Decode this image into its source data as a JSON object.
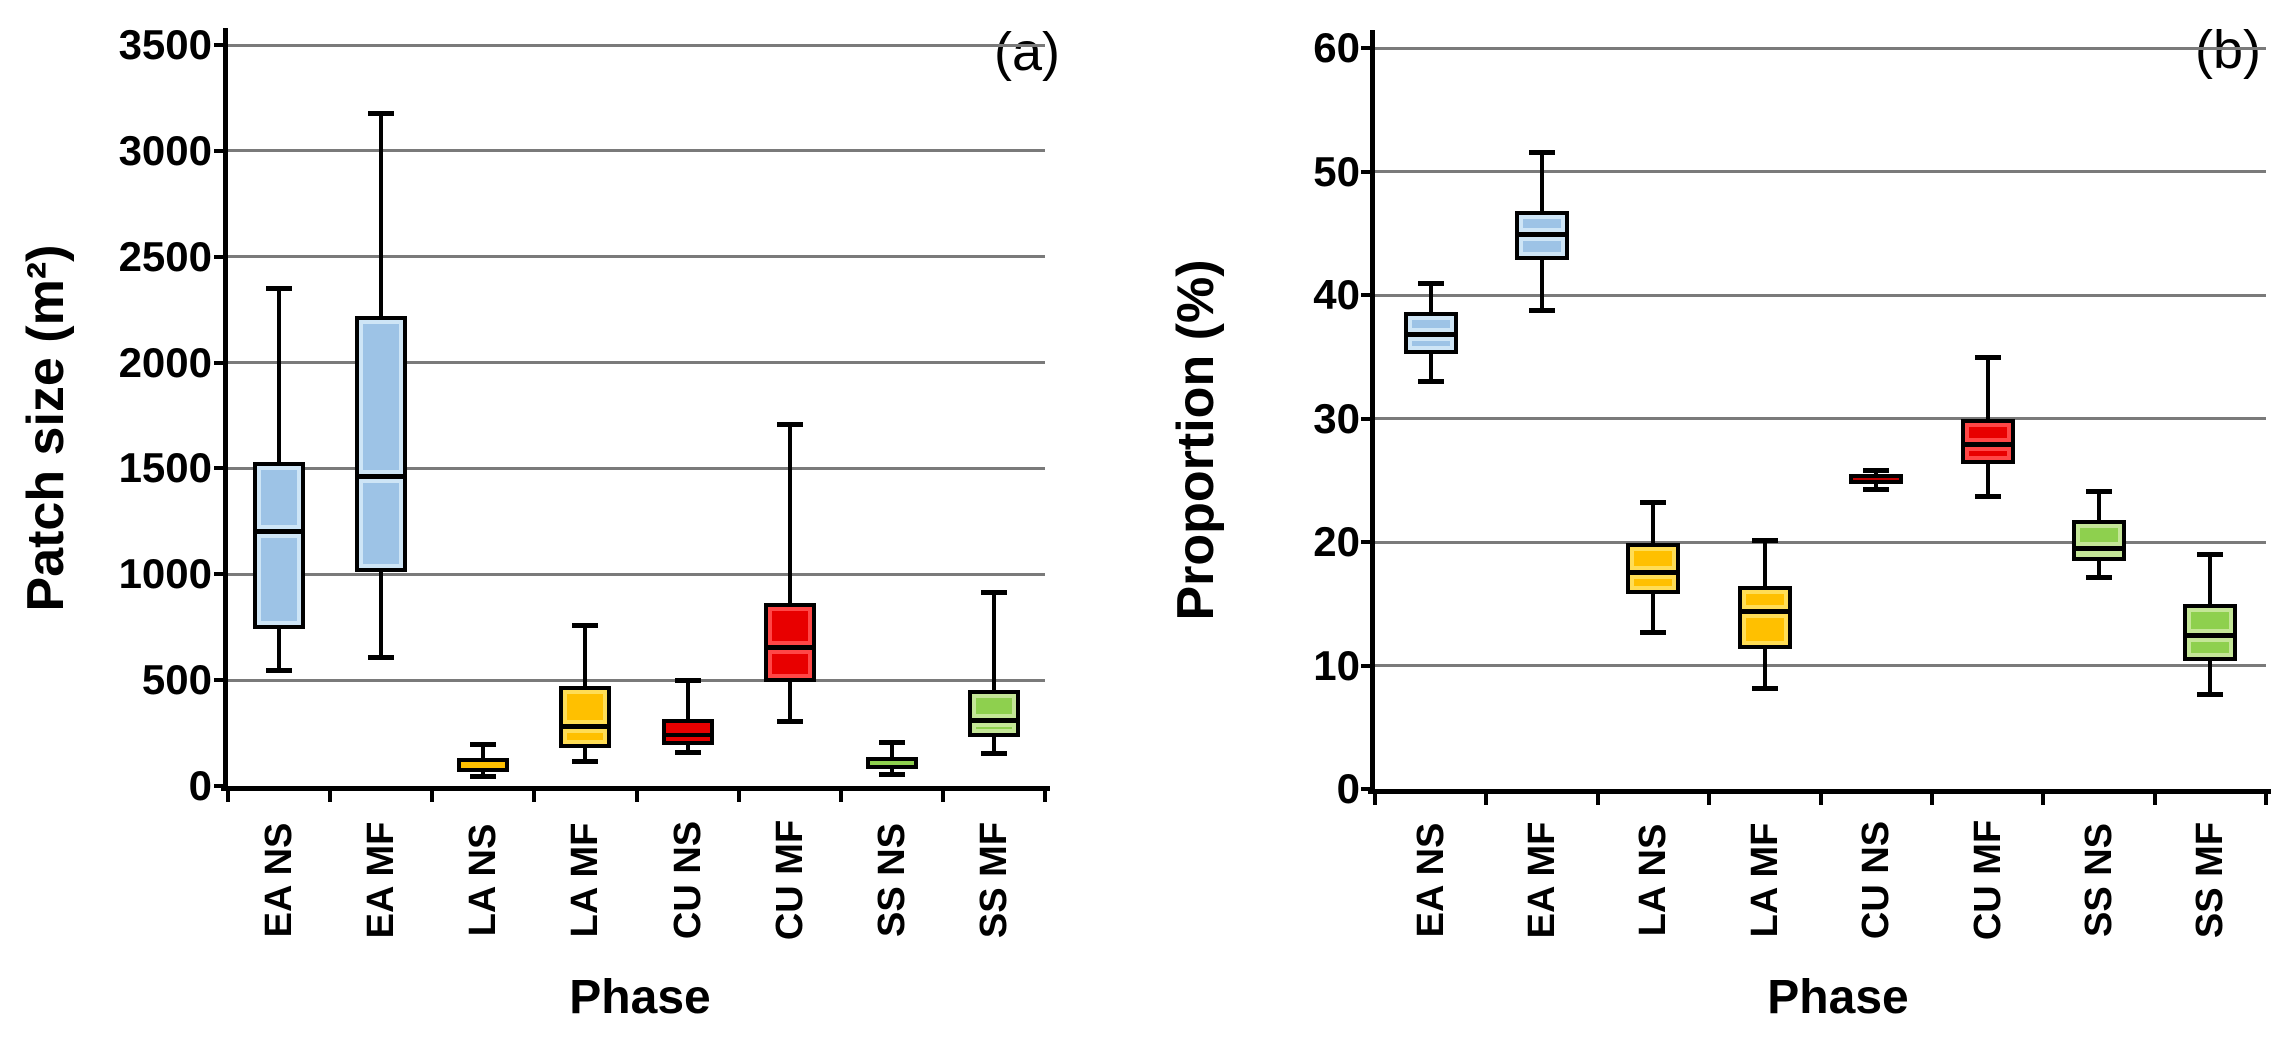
{
  "figure_style": {
    "background": "#FFFFFF",
    "gridline_color": "#7A7A7A",
    "axis_color": "#000000",
    "text_color": "#000000"
  },
  "chart_data": [
    {
      "type": "box",
      "title": "(a)",
      "xlabel": "Phase",
      "ylabel": "Patch size (m²)",
      "ylim": [
        0,
        3500
      ],
      "ytick_step": 500,
      "ytick_labels": [
        "0",
        "500",
        "1000",
        "1500",
        "2000",
        "2500",
        "3000",
        "3500"
      ],
      "grid": true,
      "legend": false,
      "categories": [
        "EA NS",
        "EA MF",
        "LA NS",
        "LA MF",
        "CU NS",
        "CU MF",
        "SS NS",
        "SS MF"
      ],
      "series": [
        {
          "category": "EA NS",
          "whisker_low": 550,
          "q1": 740,
          "median": 1200,
          "q3": 1530,
          "whisker_high": 2350,
          "fill": "#9DC3E6",
          "highlight": "#CEE5F6"
        },
        {
          "category": "EA MF",
          "whisker_low": 610,
          "q1": 1010,
          "median": 1460,
          "q3": 2220,
          "whisker_high": 3180,
          "fill": "#9DC3E6",
          "highlight": "#CEE5F6"
        },
        {
          "category": "LA NS",
          "whisker_low": 45,
          "q1": 65,
          "median": 95,
          "q3": 130,
          "whisker_high": 200,
          "fill": "#FFC000",
          "highlight": "#FFDD55"
        },
        {
          "category": "LA MF",
          "whisker_low": 120,
          "q1": 180,
          "median": 280,
          "q3": 470,
          "whisker_high": 760,
          "fill": "#FFC000",
          "highlight": "#FFDD55"
        },
        {
          "category": "CU NS",
          "whisker_low": 160,
          "q1": 195,
          "median": 240,
          "q3": 315,
          "whisker_high": 500,
          "fill": "#E80000",
          "highlight": "#FF4646"
        },
        {
          "category": "CU MF",
          "whisker_low": 305,
          "q1": 490,
          "median": 655,
          "q3": 865,
          "whisker_high": 1710,
          "fill": "#E80000",
          "highlight": "#FF4646"
        },
        {
          "category": "SS NS",
          "whisker_low": 55,
          "q1": 80,
          "median": 105,
          "q3": 135,
          "whisker_high": 210,
          "fill": "#8ED04E",
          "highlight": "#C4E697"
        },
        {
          "category": "SS MF",
          "whisker_low": 155,
          "q1": 230,
          "median": 310,
          "q3": 455,
          "whisker_high": 915,
          "fill": "#8ED04E",
          "highlight": "#C4E697"
        }
      ]
    },
    {
      "type": "box",
      "title": "(b)",
      "xlabel": "Phase",
      "ylabel": "Proportion (%)",
      "ylim": [
        0,
        60
      ],
      "ytick_step": 10,
      "ytick_labels": [
        "0",
        "10",
        "20",
        "30",
        "40",
        "50",
        "60"
      ],
      "grid": true,
      "legend": false,
      "categories": [
        "EA NS",
        "EA MF",
        "LA NS",
        "LA MF",
        "CU NS",
        "CU MF",
        "SS NS",
        "SS MF"
      ],
      "series": [
        {
          "category": "EA NS",
          "whisker_low": 33.0,
          "q1": 35.2,
          "median": 36.8,
          "q3": 38.6,
          "whisker_high": 41.0,
          "fill": "#9DC3E6",
          "highlight": "#CEE5F6"
        },
        {
          "category": "EA MF",
          "whisker_low": 38.8,
          "q1": 42.8,
          "median": 44.9,
          "q3": 46.8,
          "whisker_high": 51.6,
          "fill": "#9DC3E6",
          "highlight": "#CEE5F6"
        },
        {
          "category": "LA NS",
          "whisker_low": 12.7,
          "q1": 15.8,
          "median": 17.5,
          "q3": 19.9,
          "whisker_high": 23.2,
          "fill": "#FFC000",
          "highlight": "#FFDD55"
        },
        {
          "category": "LA MF",
          "whisker_low": 8.2,
          "q1": 11.3,
          "median": 14.4,
          "q3": 16.4,
          "whisker_high": 20.2,
          "fill": "#FFC000",
          "highlight": "#FFDD55"
        },
        {
          "category": "CU NS",
          "whisker_low": 24.3,
          "q1": 24.7,
          "median": 25.1,
          "q3": 25.5,
          "whisker_high": 25.8,
          "fill": "#C00000",
          "highlight": "#E03030"
        },
        {
          "category": "CU MF",
          "whisker_low": 23.7,
          "q1": 26.3,
          "median": 27.9,
          "q3": 30.0,
          "whisker_high": 35.0,
          "fill": "#E80000",
          "highlight": "#FF4646"
        },
        {
          "category": "SS NS",
          "whisker_low": 17.2,
          "q1": 18.5,
          "median": 19.5,
          "q3": 21.8,
          "whisker_high": 24.1,
          "fill": "#8ED04E",
          "highlight": "#C4E697"
        },
        {
          "category": "SS MF",
          "whisker_low": 7.7,
          "q1": 10.4,
          "median": 12.4,
          "q3": 15.0,
          "whisker_high": 19.0,
          "fill": "#8ED04E",
          "highlight": "#C4E697"
        }
      ]
    }
  ]
}
